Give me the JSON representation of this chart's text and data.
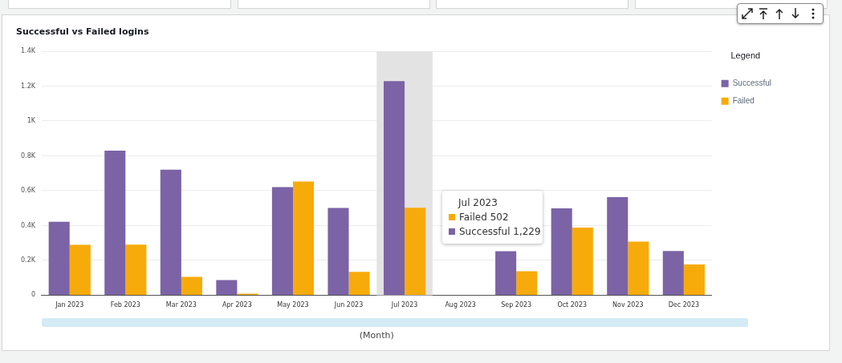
{
  "chart_data": {
    "type": "bar",
    "title": "Successful vs Failed logins",
    "xlabel": "(Month)",
    "legend_title": "Legend",
    "categories": [
      "Jan 2023",
      "Feb 2023",
      "Mar 2023",
      "Apr 2023",
      "May 2023",
      "Jun 2023",
      "Jul 2023",
      "Aug 2023",
      "Sep 2023",
      "Oct 2023",
      "Nov 2023",
      "Dec 2023"
    ],
    "series": [
      {
        "name": "Successful",
        "color": "#7b63a6",
        "values": [
          422,
          830,
          721,
          87,
          620,
          501,
          1229,
          null,
          253,
          498,
          563,
          254
        ]
      },
      {
        "name": "Failed",
        "color": "#f7ab0a",
        "values": [
          289,
          290,
          105,
          9,
          653,
          134,
          502,
          null,
          138,
          388,
          308,
          177
        ]
      }
    ],
    "ylim": [
      0,
      1400
    ],
    "yticks": [
      0,
      {
        "value": 200,
        "label": "0.2K"
      },
      {
        "value": 400,
        "label": "0.4K"
      },
      {
        "value": 600,
        "label": "0.6K"
      },
      {
        "value": 800,
        "label": "0.8K"
      },
      {
        "value": 1000,
        "label": "1K"
      },
      {
        "value": 1200,
        "label": "1.2K"
      },
      {
        "value": 1400,
        "label": "1.4K"
      }
    ],
    "bands": [
      {
        "axis": "x",
        "from": "Jul 2023",
        "to": "Jul 2023",
        "color": "#e3e3e3"
      }
    ],
    "annotations": [
      "Jul 2023",
      "Failed 502",
      "Successful 1,229"
    ],
    "grid": "y",
    "legend": "top right"
  }
}
